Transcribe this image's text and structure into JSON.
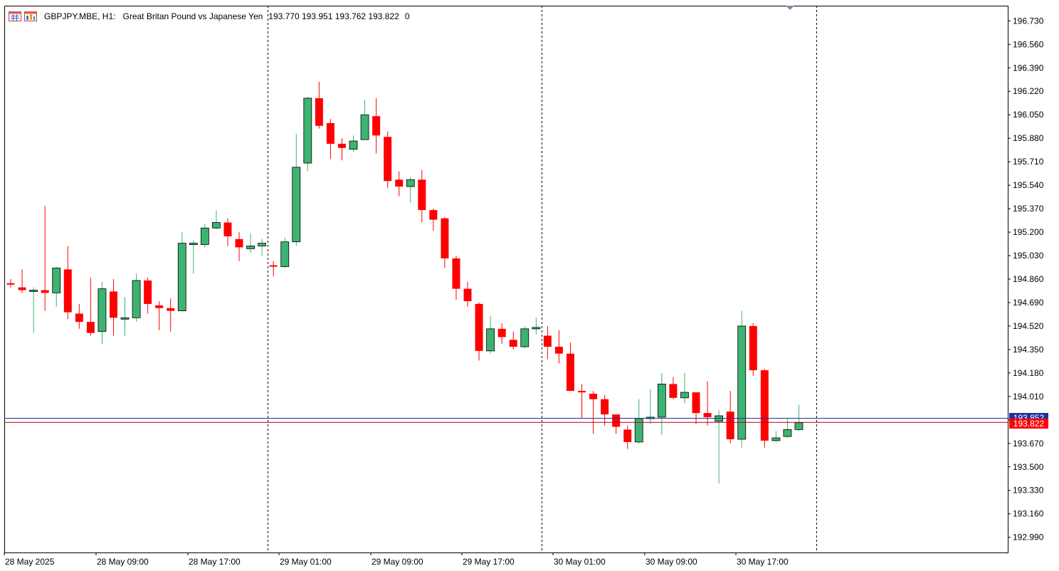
{
  "header": {
    "symbol": "GBPJPY.MBE, H1:",
    "description": "Great Britan Pound vs Japanese Yen",
    "ohlc": "193.770 193.951 193.762 193.822",
    "volume": "0",
    "icons": [
      "chart-window-icon",
      "chart-bars-icon"
    ]
  },
  "colors": {
    "bull": "#3cb371",
    "bear": "#ff0000",
    "bid_line": "#2030a0",
    "last_line": "#c00000",
    "grid": "#000000",
    "background": "#ffffff"
  },
  "price_tags": {
    "bid": "193.852",
    "last": "193.822"
  },
  "chart_data": {
    "type": "candlestick",
    "symbol": "GBPJPY.MBE",
    "timeframe": "H1",
    "y_ticks": [
      "196.730",
      "196.560",
      "196.390",
      "196.220",
      "196.050",
      "195.880",
      "195.710",
      "195.540",
      "195.370",
      "195.200",
      "195.030",
      "194.860",
      "194.690",
      "194.520",
      "194.350",
      "194.180",
      "194.010",
      "193.840",
      "193.670",
      "193.500",
      "193.330",
      "193.160",
      "192.990"
    ],
    "ylim": [
      192.88,
      196.84
    ],
    "x_ticks": [
      "28 May 2025",
      "28 May 09:00",
      "28 May 17:00",
      "29 May 01:00",
      "29 May 09:00",
      "29 May 17:00",
      "30 May 01:00",
      "30 May 09:00",
      "30 May 17:00"
    ],
    "day_separators_after_index": [
      22,
      46,
      70
    ],
    "bid_price": 193.852,
    "last_price": 193.822,
    "candles": [
      {
        "o": 194.83,
        "h": 194.86,
        "l": 194.8,
        "c": 194.82
      },
      {
        "o": 194.8,
        "h": 194.93,
        "l": 194.76,
        "c": 194.78
      },
      {
        "o": 194.77,
        "h": 194.8,
        "l": 194.47,
        "c": 194.78
      },
      {
        "o": 194.78,
        "h": 195.39,
        "l": 194.63,
        "c": 194.76
      },
      {
        "o": 194.76,
        "h": 194.95,
        "l": 194.66,
        "c": 194.94
      },
      {
        "o": 194.93,
        "h": 195.1,
        "l": 194.57,
        "c": 194.62
      },
      {
        "o": 194.61,
        "h": 194.68,
        "l": 194.5,
        "c": 194.55
      },
      {
        "o": 194.55,
        "h": 194.87,
        "l": 194.45,
        "c": 194.47
      },
      {
        "o": 194.48,
        "h": 194.84,
        "l": 194.39,
        "c": 194.79
      },
      {
        "o": 194.77,
        "h": 194.86,
        "l": 194.45,
        "c": 194.58
      },
      {
        "o": 194.58,
        "h": 194.73,
        "l": 194.45,
        "c": 194.58
      },
      {
        "o": 194.58,
        "h": 194.9,
        "l": 194.55,
        "c": 194.85
      },
      {
        "o": 194.85,
        "h": 194.87,
        "l": 194.61,
        "c": 194.68
      },
      {
        "o": 194.67,
        "h": 194.7,
        "l": 194.49,
        "c": 194.65
      },
      {
        "o": 194.65,
        "h": 194.72,
        "l": 194.48,
        "c": 194.63
      },
      {
        "o": 194.63,
        "h": 195.2,
        "l": 194.63,
        "c": 195.12
      },
      {
        "o": 195.11,
        "h": 195.14,
        "l": 194.9,
        "c": 195.12
      },
      {
        "o": 195.11,
        "h": 195.26,
        "l": 195.09,
        "c": 195.23
      },
      {
        "o": 195.23,
        "h": 195.36,
        "l": 195.22,
        "c": 195.27
      },
      {
        "o": 195.27,
        "h": 195.3,
        "l": 195.1,
        "c": 195.17
      },
      {
        "o": 195.15,
        "h": 195.2,
        "l": 194.99,
        "c": 195.09
      },
      {
        "o": 195.08,
        "h": 195.19,
        "l": 195.05,
        "c": 195.1
      },
      {
        "o": 195.1,
        "h": 195.15,
        "l": 195.03,
        "c": 195.12
      },
      {
        "o": 194.96,
        "h": 194.99,
        "l": 194.88,
        "c": 194.95
      },
      {
        "o": 194.95,
        "h": 195.16,
        "l": 194.94,
        "c": 195.13
      },
      {
        "o": 195.13,
        "h": 195.91,
        "l": 195.1,
        "c": 195.67
      },
      {
        "o": 195.7,
        "h": 196.18,
        "l": 195.64,
        "c": 196.17
      },
      {
        "o": 196.17,
        "h": 196.29,
        "l": 195.95,
        "c": 195.97
      },
      {
        "o": 195.99,
        "h": 196.02,
        "l": 195.73,
        "c": 195.84
      },
      {
        "o": 195.84,
        "h": 195.88,
        "l": 195.72,
        "c": 195.81
      },
      {
        "o": 195.8,
        "h": 195.9,
        "l": 195.78,
        "c": 195.86
      },
      {
        "o": 195.87,
        "h": 196.16,
        "l": 195.87,
        "c": 196.05
      },
      {
        "o": 196.04,
        "h": 196.17,
        "l": 195.77,
        "c": 195.9
      },
      {
        "o": 195.89,
        "h": 195.93,
        "l": 195.52,
        "c": 195.57
      },
      {
        "o": 195.58,
        "h": 195.64,
        "l": 195.46,
        "c": 195.53
      },
      {
        "o": 195.53,
        "h": 195.6,
        "l": 195.41,
        "c": 195.58
      },
      {
        "o": 195.58,
        "h": 195.65,
        "l": 195.27,
        "c": 195.36
      },
      {
        "o": 195.36,
        "h": 195.37,
        "l": 195.21,
        "c": 195.29
      },
      {
        "o": 195.3,
        "h": 195.31,
        "l": 194.94,
        "c": 195.01
      },
      {
        "o": 195.01,
        "h": 195.03,
        "l": 194.71,
        "c": 194.79
      },
      {
        "o": 194.79,
        "h": 194.84,
        "l": 194.66,
        "c": 194.7
      },
      {
        "o": 194.68,
        "h": 194.69,
        "l": 194.27,
        "c": 194.34
      },
      {
        "o": 194.34,
        "h": 194.59,
        "l": 194.32,
        "c": 194.5
      },
      {
        "o": 194.5,
        "h": 194.54,
        "l": 194.39,
        "c": 194.44
      },
      {
        "o": 194.42,
        "h": 194.48,
        "l": 194.35,
        "c": 194.37
      },
      {
        "o": 194.37,
        "h": 194.52,
        "l": 194.36,
        "c": 194.5
      },
      {
        "o": 194.5,
        "h": 194.58,
        "l": 194.46,
        "c": 194.51
      },
      {
        "o": 194.45,
        "h": 194.52,
        "l": 194.28,
        "c": 194.37
      },
      {
        "o": 194.37,
        "h": 194.49,
        "l": 194.25,
        "c": 194.32
      },
      {
        "o": 194.32,
        "h": 194.4,
        "l": 194.07,
        "c": 194.05
      },
      {
        "o": 194.05,
        "h": 194.1,
        "l": 193.85,
        "c": 194.04
      },
      {
        "o": 194.03,
        "h": 194.05,
        "l": 193.74,
        "c": 193.99
      },
      {
        "o": 193.99,
        "h": 194.02,
        "l": 193.8,
        "c": 193.88
      },
      {
        "o": 193.88,
        "h": 193.88,
        "l": 193.74,
        "c": 193.79
      },
      {
        "o": 193.77,
        "h": 193.8,
        "l": 193.63,
        "c": 193.68
      },
      {
        "o": 193.68,
        "h": 193.99,
        "l": 193.67,
        "c": 193.85
      },
      {
        "o": 193.85,
        "h": 194.06,
        "l": 193.81,
        "c": 193.86
      },
      {
        "o": 193.86,
        "h": 194.18,
        "l": 193.73,
        "c": 194.1
      },
      {
        "o": 194.1,
        "h": 194.15,
        "l": 193.99,
        "c": 194.0
      },
      {
        "o": 194.0,
        "h": 194.18,
        "l": 193.96,
        "c": 194.04
      },
      {
        "o": 194.04,
        "h": 194.04,
        "l": 193.81,
        "c": 193.89
      },
      {
        "o": 193.89,
        "h": 194.12,
        "l": 193.8,
        "c": 193.86
      },
      {
        "o": 193.83,
        "h": 193.91,
        "l": 193.38,
        "c": 193.87
      },
      {
        "o": 193.9,
        "h": 194.05,
        "l": 193.67,
        "c": 193.7
      },
      {
        "o": 193.7,
        "h": 194.63,
        "l": 193.64,
        "c": 194.52
      },
      {
        "o": 194.52,
        "h": 194.54,
        "l": 194.16,
        "c": 194.2
      },
      {
        "o": 194.2,
        "h": 194.21,
        "l": 193.64,
        "c": 193.69
      },
      {
        "o": 193.69,
        "h": 193.76,
        "l": 193.68,
        "c": 193.71
      },
      {
        "o": 193.72,
        "h": 193.85,
        "l": 193.71,
        "c": 193.77
      },
      {
        "o": 193.77,
        "h": 193.95,
        "l": 193.76,
        "c": 193.82
      }
    ]
  }
}
